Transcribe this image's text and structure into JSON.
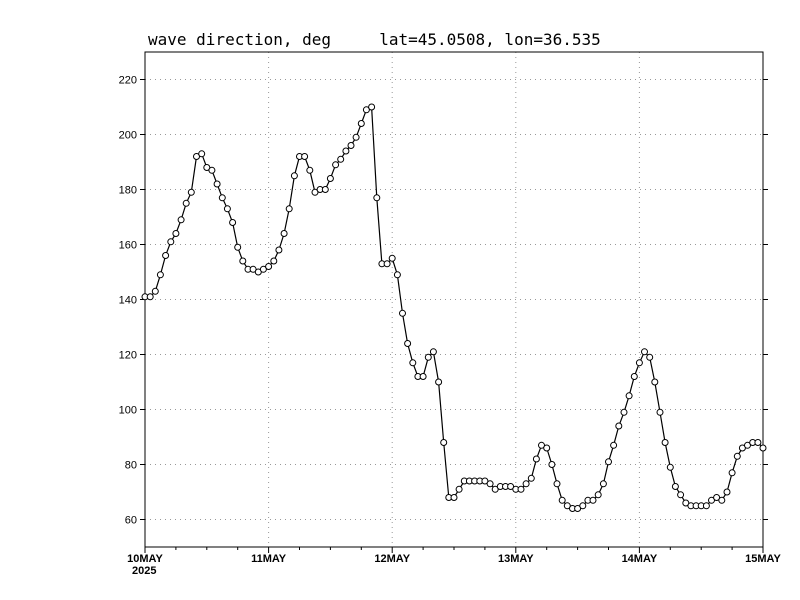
{
  "title": {
    "variable": "wave direction, deg",
    "location": "lat=45.0508, lon=36.535"
  },
  "chart_data": {
    "type": "line",
    "title": "wave direction, deg     lat=45.0508, lon=36.535",
    "xlabel": "",
    "ylabel": "",
    "ylim": [
      50,
      230
    ],
    "yticks": [
      60,
      80,
      100,
      120,
      140,
      160,
      180,
      200,
      220
    ],
    "xlim": [
      0,
      120
    ],
    "x_tick_labels": [
      {
        "x": 0,
        "label": "10MAY",
        "sub": "2025"
      },
      {
        "x": 24,
        "label": "11MAY"
      },
      {
        "x": 48,
        "label": "12MAY"
      },
      {
        "x": 72,
        "label": "13MAY"
      },
      {
        "x": 96,
        "label": "14MAY"
      },
      {
        "x": 120,
        "label": "15MAY"
      }
    ],
    "grid": true,
    "marker": "open-circle",
    "series": [
      {
        "x_unit": "hours since 10MAY 00Z",
        "values": [
          141,
          141,
          143,
          149,
          156,
          161,
          164,
          169,
          175,
          179,
          192,
          193,
          188,
          187,
          182,
          177,
          173,
          168,
          159,
          154,
          151,
          151,
          150,
          151,
          152,
          154,
          158,
          164,
          173,
          185,
          192,
          192,
          187,
          179,
          180,
          180,
          184,
          189,
          191,
          194,
          196,
          199,
          204,
          209,
          210,
          177,
          153,
          153,
          155,
          149,
          135,
          124,
          117,
          112,
          112,
          119,
          121,
          110,
          88,
          68,
          68,
          71,
          74,
          74,
          74,
          74,
          74,
          73,
          71,
          72,
          72,
          72,
          71,
          71,
          73,
          75,
          82,
          87,
          86,
          80,
          73,
          67,
          65,
          64,
          64,
          65,
          67,
          67,
          69,
          73,
          81,
          87,
          94,
          99,
          105,
          112,
          117,
          121,
          119,
          110,
          99,
          88,
          79,
          72,
          69,
          66,
          65,
          65,
          65,
          65,
          67,
          68,
          67,
          70,
          77,
          83,
          86,
          87,
          88,
          88,
          86
        ]
      }
    ]
  }
}
